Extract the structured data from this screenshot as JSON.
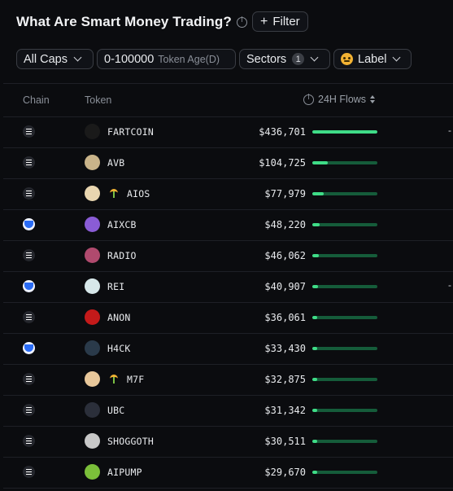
{
  "header": {
    "title": "What Are Smart Money Trading?",
    "filter_label": "Filter"
  },
  "filters": {
    "caps": "All Caps",
    "token_age_range": "0-100000",
    "token_age_label": "Token Age(D)",
    "sectors": "Sectors",
    "sectors_count": "1",
    "label": "Label"
  },
  "columns": {
    "chain": "Chain",
    "token": "Token",
    "flows": "24H Flows"
  },
  "colors": {
    "flow_fill": "#3fdc87",
    "flow_track": "#155c3a",
    "background": "#0b0c0f"
  },
  "rows": [
    {
      "chain": "solana",
      "token": "FARTCOIN",
      "flow": "$436,701",
      "flow_fraction": 1.0,
      "trailing": "-",
      "avatar_color": "#1a1a1a",
      "sprout": false
    },
    {
      "chain": "solana",
      "token": "AVB",
      "flow": "$104,725",
      "flow_fraction": 0.24,
      "trailing": "",
      "avatar_color": "#c9b48a",
      "sprout": false
    },
    {
      "chain": "solana",
      "token": "AIOS",
      "flow": "$77,979",
      "flow_fraction": 0.18,
      "trailing": "",
      "avatar_color": "#e9d6b0",
      "sprout": true
    },
    {
      "chain": "base",
      "token": "AIXCB",
      "flow": "$48,220",
      "flow_fraction": 0.11,
      "trailing": "",
      "avatar_color": "#8a5cd6",
      "sprout": false
    },
    {
      "chain": "solana",
      "token": "RADIO",
      "flow": "$46,062",
      "flow_fraction": 0.1,
      "trailing": "",
      "avatar_color": "#b04a6e",
      "sprout": false
    },
    {
      "chain": "base",
      "token": "REI",
      "flow": "$40,907",
      "flow_fraction": 0.09,
      "trailing": "-",
      "avatar_color": "#d7e8ea",
      "sprout": false
    },
    {
      "chain": "solana",
      "token": "ANON",
      "flow": "$36,061",
      "flow_fraction": 0.08,
      "trailing": "",
      "avatar_color": "#c41a1a",
      "sprout": false
    },
    {
      "chain": "base",
      "token": "H4CK",
      "flow": "$33,430",
      "flow_fraction": 0.08,
      "trailing": "",
      "avatar_color": "#2a3a4a",
      "sprout": false
    },
    {
      "chain": "solana",
      "token": "M7F",
      "flow": "$32,875",
      "flow_fraction": 0.07,
      "trailing": "",
      "avatar_color": "#e8c79a",
      "sprout": true
    },
    {
      "chain": "solana",
      "token": "UBC",
      "flow": "$31,342",
      "flow_fraction": 0.07,
      "trailing": "",
      "avatar_color": "#2b2f3a",
      "sprout": false
    },
    {
      "chain": "solana",
      "token": "SHOGGOTH",
      "flow": "$30,511",
      "flow_fraction": 0.07,
      "trailing": "",
      "avatar_color": "#c8c8c8",
      "sprout": false
    },
    {
      "chain": "solana",
      "token": "AIPUMP",
      "flow": "$29,670",
      "flow_fraction": 0.07,
      "trailing": "",
      "avatar_color": "#7bbf3a",
      "sprout": false
    }
  ]
}
